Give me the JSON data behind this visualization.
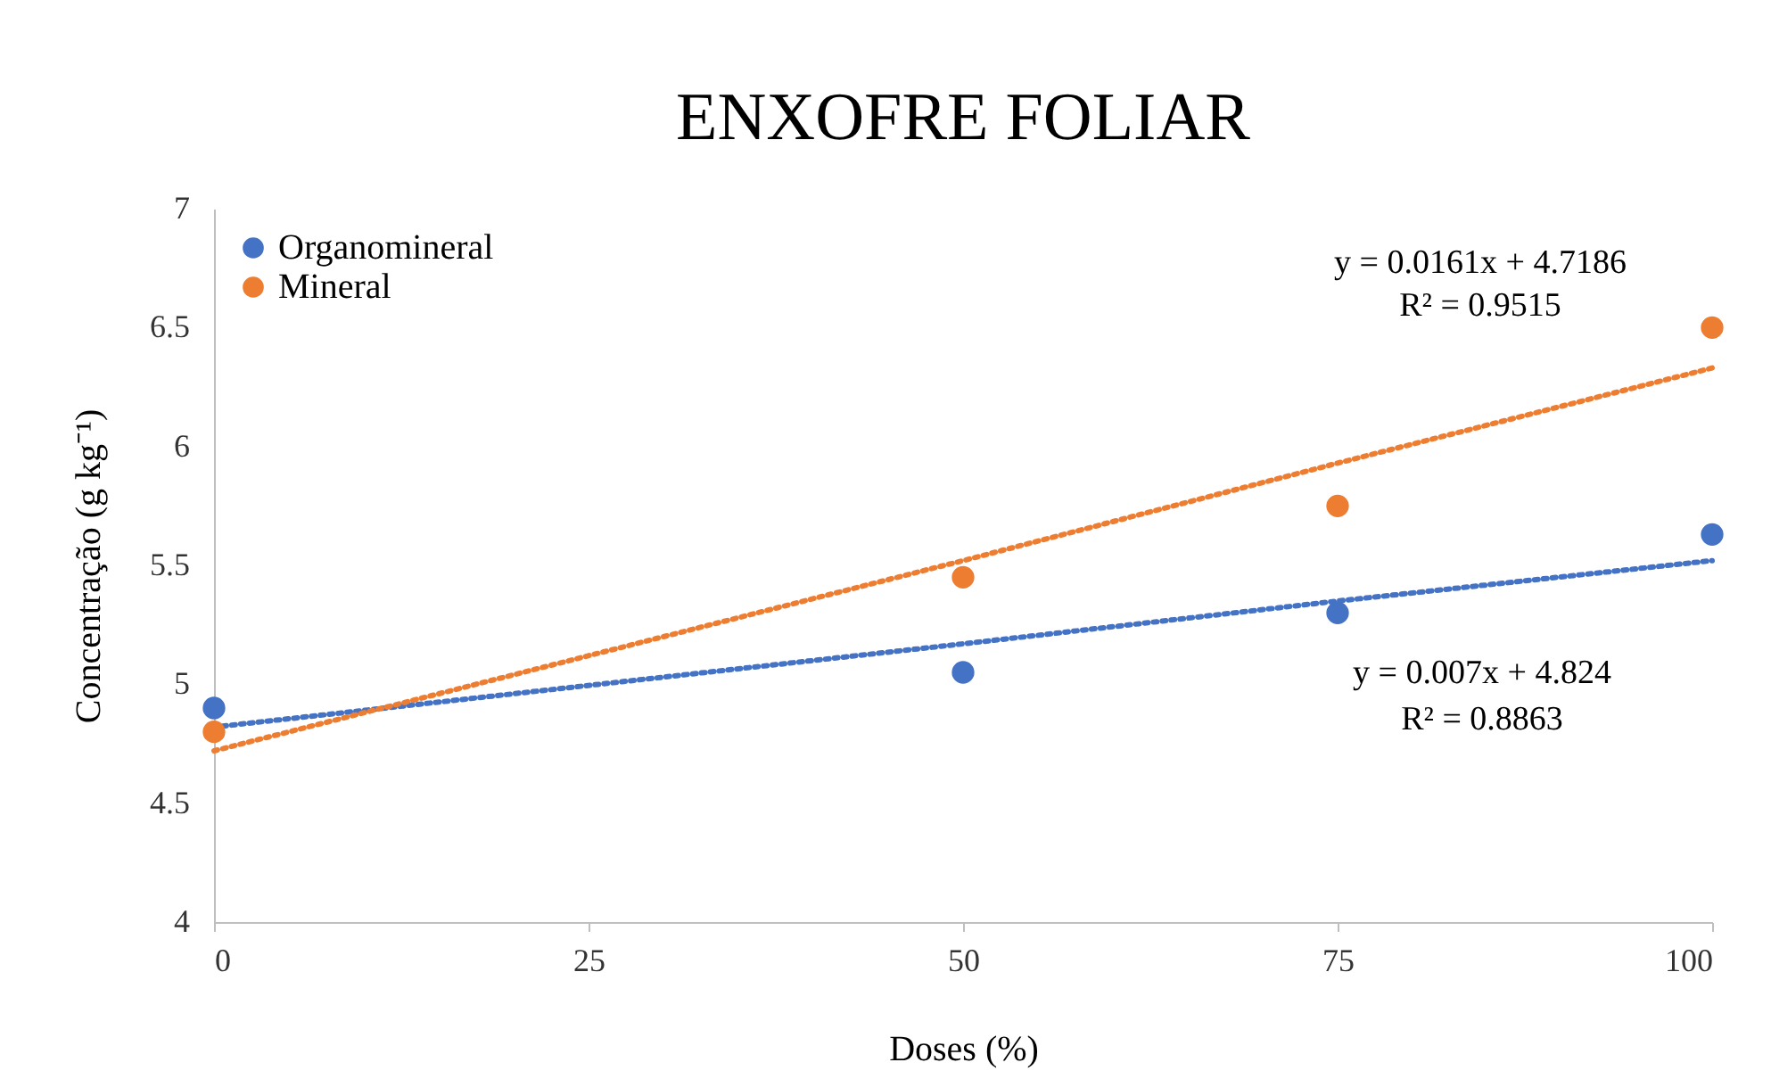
{
  "chart_data": {
    "type": "scatter",
    "title": "ENXOFRE FOLIAR",
    "xlabel": "Doses (%)",
    "ylabel": "Concentração (g kg⁻¹)",
    "x": [
      0,
      50,
      75,
      100
    ],
    "series": [
      {
        "name": "Organomineral",
        "color": "#4472c4",
        "values": [
          4.9,
          5.05,
          5.3,
          5.63
        ]
      },
      {
        "name": "Mineral",
        "color": "#ed7d31",
        "values": [
          4.8,
          5.45,
          5.75,
          6.5
        ]
      },
      {
        "type": "line",
        "color": "#4472c4",
        "values": [
          4.82,
          5.17,
          5.35,
          5.52
        ],
        "line_style": "dotted",
        "marker": "none"
      },
      {
        "type": "line",
        "color": "#ed7d31",
        "values": [
          4.72,
          5.52,
          5.93,
          6.33
        ],
        "line_style": "dotted",
        "marker": "none"
      }
    ],
    "annotations": [
      "y = 0.0161x + 4.7186",
      "R² = 0.9515",
      "y = 0.007x + 4.824",
      "R² = 0.8863"
    ],
    "xlim": [
      0,
      100
    ],
    "xticks": [
      0,
      25,
      50,
      75,
      100
    ],
    "ylim": [
      4,
      7
    ],
    "yticks": [
      {
        "value": 4,
        "label": "4"
      },
      4.5,
      {
        "value": 5,
        "label": "5"
      },
      5.5,
      {
        "value": 6,
        "label": "6"
      },
      6.5,
      {
        "value": 7,
        "label": "7"
      }
    ],
    "grid": false,
    "legend": "top left",
    "marker": "circle"
  }
}
